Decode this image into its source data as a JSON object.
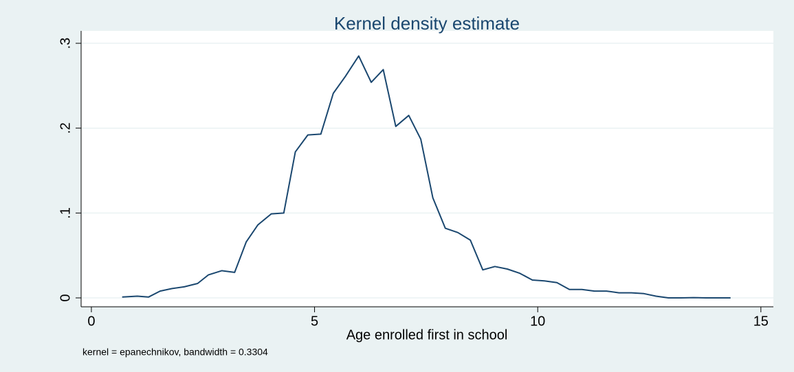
{
  "chart_data": {
    "type": "line",
    "title": "Kernel density estimate",
    "x_label": "Age enrolled first in school",
    "note": "kernel = epanechnikov, bandwidth = 0.3304",
    "x": [
      0.69,
      1.03,
      1.28,
      1.54,
      1.81,
      2.08,
      2.38,
      2.62,
      2.92,
      3.21,
      3.47,
      3.73,
      4.03,
      4.31,
      4.57,
      4.85,
      5.14,
      5.42,
      5.69,
      5.99,
      6.27,
      6.54,
      6.82,
      7.11,
      7.38,
      7.65,
      7.93,
      8.21,
      8.49,
      8.77,
      9.04,
      9.32,
      9.6,
      9.88,
      10.15,
      10.43,
      10.71,
      10.99,
      11.27,
      11.54,
      11.82,
      12.1,
      12.38,
      12.65,
      12.93,
      13.21,
      13.49,
      13.77,
      14.04,
      14.32
    ],
    "values": [
      0.001,
      0.002,
      0.001,
      0.008,
      0.011,
      0.013,
      0.017,
      0.027,
      0.032,
      0.03,
      0.066,
      0.086,
      0.099,
      0.1,
      0.172,
      0.192,
      0.193,
      0.241,
      0.261,
      0.285,
      0.254,
      0.269,
      0.202,
      0.215,
      0.187,
      0.118,
      0.082,
      0.077,
      0.068,
      0.033,
      0.037,
      0.034,
      0.029,
      0.021,
      0.02,
      0.018,
      0.01,
      0.01,
      0.008,
      0.008,
      0.006,
      0.006,
      0.005,
      0.002,
      0,
      0,
      0.0003,
      0,
      0,
      0
    ],
    "color": "#1a476f",
    "xlim": [
      -0.23,
      15.28
    ],
    "xticks": [
      0,
      5,
      10,
      15
    ],
    "ylim": [
      -0.0105,
      0.3146
    ],
    "yticks": [
      0,
      {
        "value": 0.1,
        "label": ".1"
      },
      {
        "value": 0.2,
        "label": ".2"
      },
      {
        "value": 0.3,
        "label": ".3"
      }
    ],
    "grid": true
  }
}
